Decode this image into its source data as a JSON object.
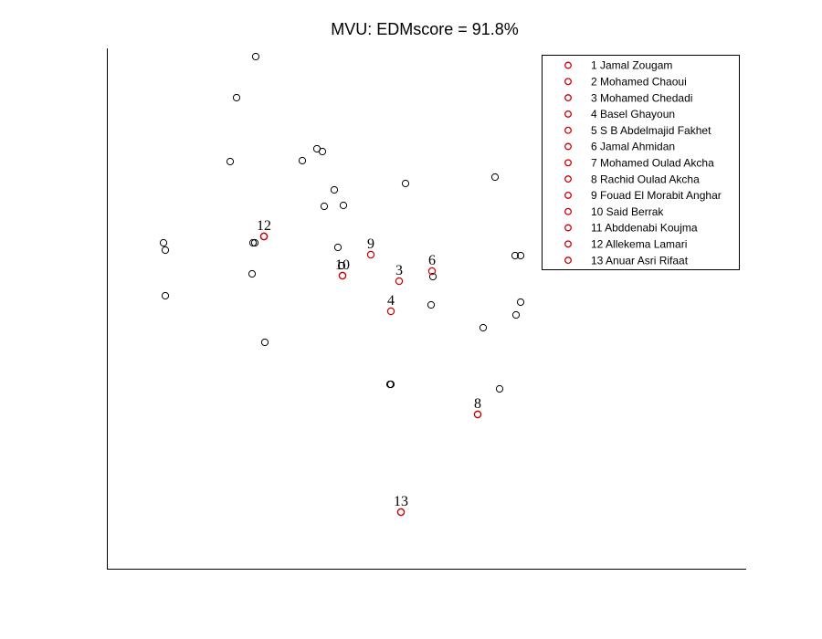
{
  "chart_data": {
    "type": "scatter",
    "title": "MVU: EDMscore = 91.8%",
    "xlabel": "",
    "ylabel": "",
    "axes_visible": "left and bottom only, no ticks",
    "grid": false,
    "legend_placement": "top-right",
    "colors": {
      "background": "#ffffff",
      "axis": "#000000",
      "gray_marker": "#000000",
      "red_marker": "#cc0000"
    },
    "xlim": [
      0,
      700
    ],
    "ylim": [
      0,
      570
    ],
    "gray_points": [
      [
        163,
        561
      ],
      [
        142,
        516
      ],
      [
        135,
        446
      ],
      [
        214,
        447
      ],
      [
        230,
        460
      ],
      [
        236,
        457
      ],
      [
        249,
        415
      ],
      [
        238,
        397
      ],
      [
        259,
        398
      ],
      [
        327,
        422
      ],
      [
        425,
        429
      ],
      [
        160,
        357
      ],
      [
        162,
        357
      ],
      [
        62,
        357
      ],
      [
        64,
        349
      ],
      [
        159,
        323
      ],
      [
        253,
        352
      ],
      [
        257,
        332
      ],
      [
        357,
        320
      ],
      [
        355,
        289
      ],
      [
        64,
        299
      ],
      [
        173,
        248
      ],
      [
        447,
        343
      ],
      [
        453,
        343
      ],
      [
        453,
        292
      ],
      [
        448,
        278
      ],
      [
        412,
        264
      ],
      [
        430,
        197
      ],
      [
        311,
        202
      ],
      [
        310,
        202
      ]
    ],
    "labeled_points": [
      {
        "num": "1",
        "name": "Jamal Zougam",
        "x": 172,
        "y": 364
      },
      {
        "num": "2",
        "name": "Mohamed Chaoui",
        "x": 172,
        "y": 364
      },
      {
        "num": "3",
        "name": "Mohamed Chedadi",
        "x": 320,
        "y": 315
      },
      {
        "num": "4",
        "name": "Basel Ghayoun",
        "x": 311,
        "y": 282
      },
      {
        "num": "5",
        "name": "S B Abdelmajid Fakhet",
        "x": 258,
        "y": 321
      },
      {
        "num": "6",
        "name": "Jamal Ahmidan",
        "x": 356,
        "y": 326
      },
      {
        "num": "7",
        "name": "Mohamed Oulad Akcha",
        "x": 406,
        "y": 169
      },
      {
        "num": "8",
        "name": "Rachid Oulad Akcha",
        "x": 406,
        "y": 169
      },
      {
        "num": "9",
        "name": "Fouad El Morabit Anghar",
        "x": 289,
        "y": 344
      },
      {
        "num": "10",
        "name": "Said Berrak",
        "x": 258,
        "y": 321
      },
      {
        "num": "11",
        "name": "Abddenabi Koujma",
        "x": 322,
        "y": 62
      },
      {
        "num": "12",
        "name": "Allekema Lamari",
        "x": 172,
        "y": 364
      },
      {
        "num": "13",
        "name": "Anuar Asri Rifaat",
        "x": 322,
        "y": 62
      }
    ],
    "point_labels": [
      {
        "text": "12",
        "x": 172,
        "y": 364
      },
      {
        "text": "9",
        "x": 289,
        "y": 344
      },
      {
        "text": "10",
        "x": 258,
        "y": 321
      },
      {
        "text": "3",
        "x": 320,
        "y": 315
      },
      {
        "text": "6",
        "x": 356,
        "y": 326
      },
      {
        "text": "4",
        "x": 311,
        "y": 282
      },
      {
        "text": "8",
        "x": 406,
        "y": 169
      },
      {
        "text": "13",
        "x": 322,
        "y": 62
      }
    ],
    "legend": [
      "1 Jamal Zougam",
      "2 Mohamed Chaoui",
      "3 Mohamed Chedadi",
      "4 Basel Ghayoun",
      "5 S B Abdelmajid Fakhet",
      "6 Jamal Ahmidan",
      "7 Mohamed Oulad Akcha",
      "8 Rachid Oulad Akcha",
      "9 Fouad El Morabit Anghar",
      "10 Said Berrak",
      "11 Abddenabi Koujma",
      "12 Allekema Lamari",
      "13 Anuar Asri Rifaat"
    ]
  }
}
